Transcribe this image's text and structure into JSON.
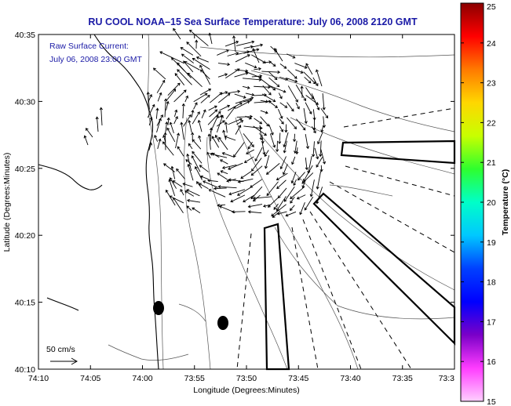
{
  "title": "RU COOL   NOAA–15  Sea Surface Temperature:  July 06, 2008 2120 GMT",
  "annotation": {
    "line1": "Raw Surface Current:",
    "line2": "July 06, 2008 23:00 GMT"
  },
  "axes": {
    "xlabel": "Longitude (Degrees:Minutes)",
    "ylabel": "Latitude (Degrees:Minutes)",
    "xticks": [
      "74:10",
      "74:05",
      "74:00",
      "73:55",
      "73:50",
      "73:45",
      "73:40",
      "73:35",
      "73:3"
    ],
    "yticks": [
      "40:35",
      "40:30",
      "40:25",
      "40:20",
      "40:15",
      "40:10"
    ]
  },
  "colorbar": {
    "label": "Temperature (°C)",
    "ticks": [
      "25",
      "24",
      "23",
      "22",
      "21",
      "20",
      "19",
      "18",
      "17",
      "16",
      "15"
    ],
    "colors": [
      "#8b0000",
      "#ff0000",
      "#ff7a00",
      "#ffd700",
      "#c8ff00",
      "#2eff2e",
      "#00ffc8",
      "#00c8ff",
      "#0040ff",
      "#0000ff",
      "#7a00c8",
      "#ff3cff",
      "#ffd0ff"
    ]
  },
  "scale_label": "50 cm/s"
}
